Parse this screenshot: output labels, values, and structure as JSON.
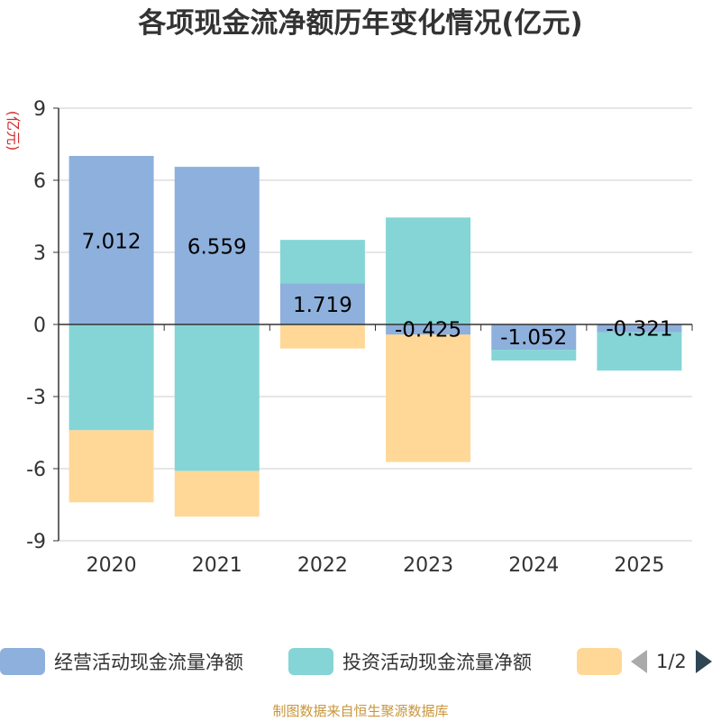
{
  "title": "各项现金流净额历年变化情况(亿元)",
  "source_note": "制图数据来自恒生聚源数据库",
  "legend": {
    "pager_text": "1/2",
    "items": [
      {
        "label": "经营活动现金流量净额",
        "color": "#8eb0dc"
      },
      {
        "label": "投资活动现金流量净额",
        "color": "#85d5d6"
      },
      {
        "label": "",
        "color": "#ffd898"
      }
    ]
  },
  "chart_data": {
    "type": "bar",
    "stacked": true,
    "title": "各项现金流净额历年变化情况(亿元)",
    "xlabel": "",
    "ylabel": "(亿元)",
    "ylim": [
      -9,
      9
    ],
    "yticks": [
      9,
      6,
      3,
      0,
      -3,
      -6,
      -9
    ],
    "categories": [
      "2020",
      "2021",
      "2022",
      "2023",
      "2024",
      "2025"
    ],
    "series": [
      {
        "name": "经营活动现金流量净额",
        "color": "#8eb0dc",
        "values": [
          7.012,
          6.559,
          1.719,
          -0.425,
          -1.052,
          -0.321
        ],
        "data_labels": [
          "7.012",
          "6.559",
          "1.719",
          "-0.425",
          "-1.052",
          "-0.321"
        ]
      },
      {
        "name": "投资活动现金流量净额",
        "color": "#85d5d6",
        "values": [
          -4.4,
          -6.1,
          1.8,
          4.45,
          -0.45,
          -1.6
        ]
      },
      {
        "name": "",
        "color": "#ffd898",
        "values": [
          -3.0,
          -1.9,
          -1.0,
          -5.3,
          0,
          0
        ]
      }
    ]
  }
}
